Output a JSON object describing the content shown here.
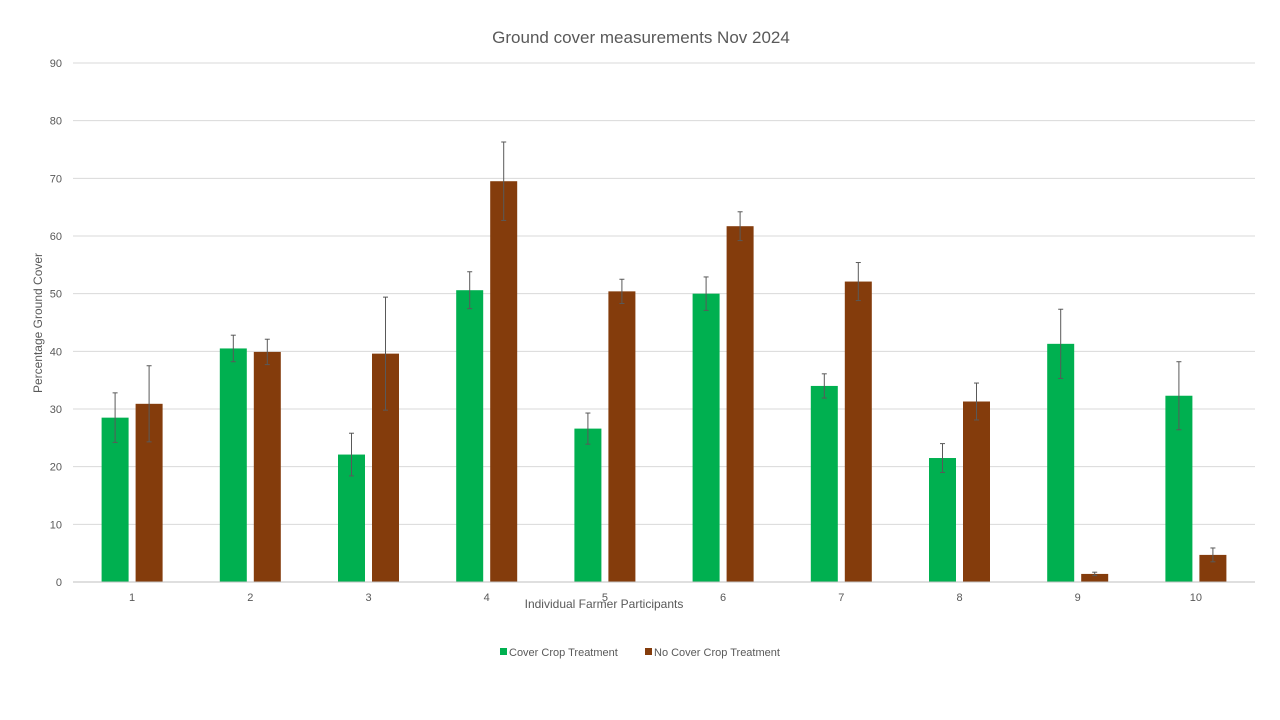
{
  "chart_data": {
    "type": "bar",
    "title": "Ground cover measurements Nov 2024",
    "xlabel": "Individual Farmer Participants",
    "ylabel": "Percentage Ground Cover",
    "categories": [
      "1",
      "2",
      "3",
      "4",
      "5",
      "6",
      "7",
      "8",
      "9",
      "10"
    ],
    "ylim": [
      0,
      90
    ],
    "yticks": [
      0,
      10,
      20,
      30,
      40,
      50,
      60,
      70,
      80,
      90
    ],
    "grid": true,
    "legend_position": "bottom",
    "series": [
      {
        "name": "Cover Crop Treatment",
        "color": "#00B050",
        "values": [
          28.5,
          40.5,
          22.1,
          50.6,
          26.6,
          50.0,
          34.0,
          21.5,
          41.3,
          32.3
        ],
        "error": [
          4.3,
          2.3,
          3.7,
          3.2,
          2.7,
          2.9,
          2.1,
          2.5,
          6.0,
          5.9
        ]
      },
      {
        "name": "No Cover Crop Treatment",
        "color": "#843C0C",
        "values": [
          30.9,
          39.9,
          39.6,
          69.5,
          50.4,
          61.7,
          52.1,
          31.3,
          1.4,
          4.7
        ],
        "error": [
          6.6,
          2.2,
          9.8,
          6.8,
          2.1,
          2.5,
          3.3,
          3.2,
          0.3,
          1.2
        ]
      }
    ]
  }
}
